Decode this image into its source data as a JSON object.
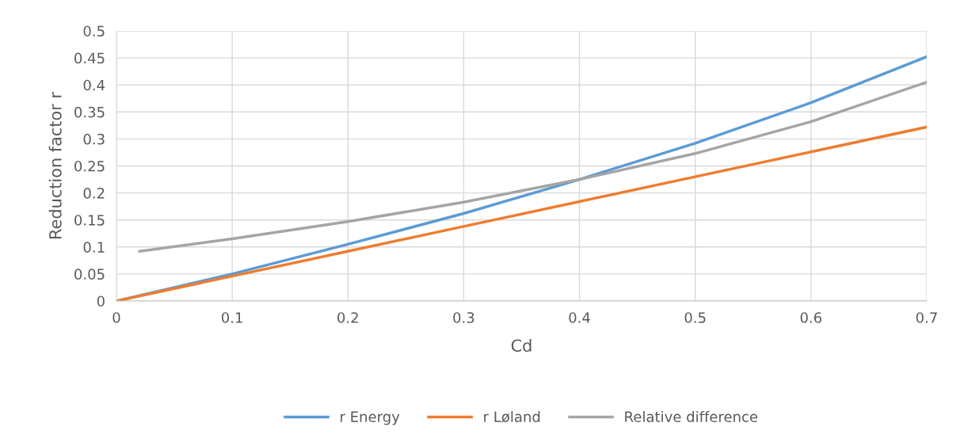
{
  "chart_data": {
    "type": "line",
    "xlabel": "Cd",
    "ylabel": "Reduction factor r",
    "xlim": [
      0,
      0.7
    ],
    "xticks": [
      0,
      0.1,
      0.2,
      0.3,
      0.4,
      0.5,
      0.6,
      0.7
    ],
    "ylim": [
      0,
      0.5
    ],
    "yticks": [
      0,
      0.05,
      0.1,
      0.15,
      0.2,
      0.25,
      0.3,
      0.35,
      0.4,
      0.45,
      0.5
    ],
    "grid": true,
    "legend": "bottom",
    "marker": "none",
    "line_style": "solid",
    "series": [
      {
        "name": "r Energy",
        "color": "#5b9bd5",
        "x": [
          0,
          0.1,
          0.2,
          0.3,
          0.4,
          0.5,
          0.6,
          0.7
        ],
        "values": [
          0,
          0.05,
          0.105,
          0.162,
          0.225,
          0.292,
          0.367,
          0.452
        ]
      },
      {
        "name": "r Løland",
        "color": "#ed7d31",
        "x": [
          0,
          0.1,
          0.2,
          0.3,
          0.4,
          0.5,
          0.6,
          0.7
        ],
        "values": [
          0,
          0.046,
          0.092,
          0.138,
          0.184,
          0.23,
          0.276,
          0.322
        ]
      },
      {
        "name": "Relative difference",
        "color": "#a5a5a5",
        "x": [
          0.02,
          0.1,
          0.2,
          0.3,
          0.4,
          0.5,
          0.6,
          0.7
        ],
        "values": [
          0.092,
          0.115,
          0.147,
          0.183,
          0.225,
          0.273,
          0.332,
          0.405
        ]
      }
    ]
  }
}
